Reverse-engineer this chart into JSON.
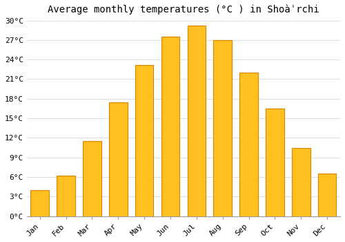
{
  "months": [
    "Jan",
    "Feb",
    "Mar",
    "Apr",
    "May",
    "Jun",
    "Jul",
    "Aug",
    "Sep",
    "Oct",
    "Nov",
    "Dec"
  ],
  "temperatures": [
    4,
    6.2,
    11.5,
    17.5,
    23.2,
    27.5,
    29.2,
    27.0,
    22.0,
    16.5,
    10.5,
    6.5
  ],
  "title": "Average monthly temperatures (°C ) in Shoàˈrchi",
  "ylim": [
    0,
    30
  ],
  "yticks": [
    0,
    3,
    6,
    9,
    12,
    15,
    18,
    21,
    24,
    27,
    30
  ],
  "ytick_labels": [
    "0°C",
    "3°C",
    "6°C",
    "9°C",
    "12°C",
    "15°C",
    "18°C",
    "21°C",
    "24°C",
    "27°C",
    "30°C"
  ],
  "background_color": "#ffffff",
  "grid_color": "#e0e0e0",
  "title_fontsize": 10,
  "tick_fontsize": 8,
  "bar_face_color": "#FFC020",
  "bar_edge_color": "#E08000",
  "bar_width": 0.7
}
